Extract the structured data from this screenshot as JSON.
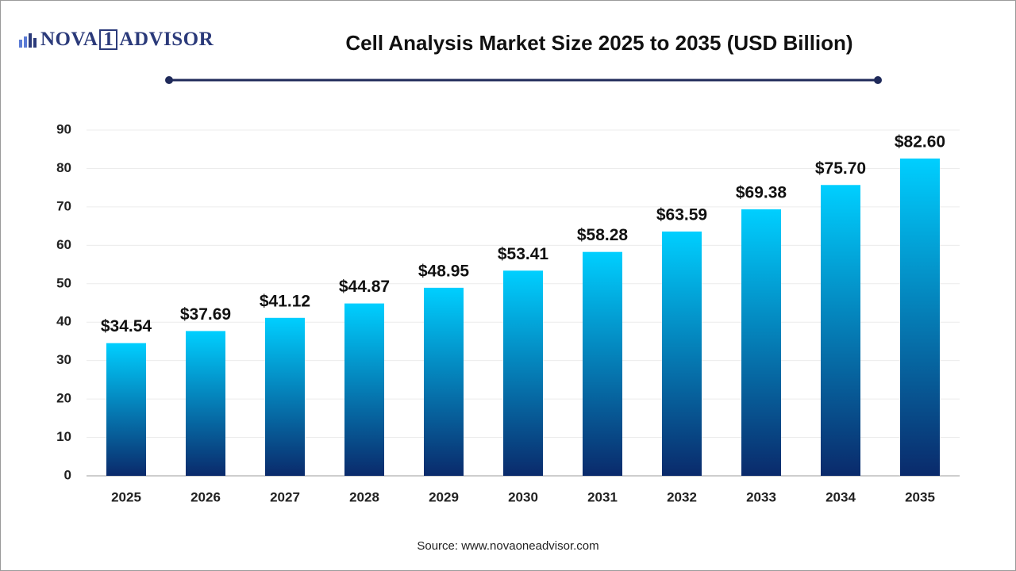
{
  "logo": {
    "left": "NOVA",
    "mark": "1",
    "right": "ADVISOR"
  },
  "chart_data": {
    "type": "bar",
    "title": "Cell Analysis Market Size 2025 to 2035 (USD Billion)",
    "categories": [
      "2025",
      "2026",
      "2027",
      "2028",
      "2029",
      "2030",
      "2031",
      "2032",
      "2033",
      "2034",
      "2035"
    ],
    "values": [
      34.54,
      37.69,
      41.12,
      44.87,
      48.95,
      53.41,
      58.28,
      63.59,
      69.38,
      75.7,
      82.6
    ],
    "value_labels": [
      "$34.54",
      "$37.69",
      "$41.12",
      "$44.87",
      "$48.95",
      "$53.41",
      "$58.28",
      "$63.59",
      "$69.38",
      "$75.70",
      "$82.60"
    ],
    "color": [
      "#00cfff",
      "#0a2a6b"
    ],
    "ylim": [
      0,
      90
    ],
    "yticks": [
      0,
      10,
      20,
      30,
      40,
      50,
      60,
      70,
      80,
      90
    ],
    "grid": true,
    "source": "Source: www.novaoneadvisor.com"
  }
}
